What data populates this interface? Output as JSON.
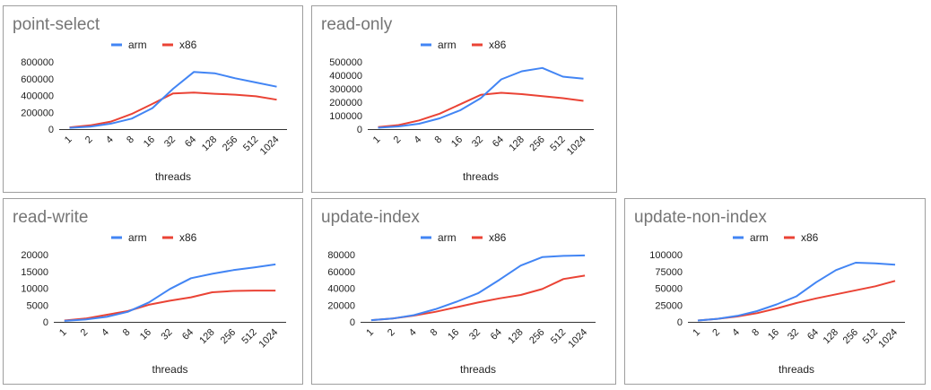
{
  "chart_data": [
    {
      "type": "line",
      "title": "point-select",
      "xlabel": "threads",
      "ylabel": "",
      "categories": [
        "1",
        "2",
        "4",
        "8",
        "16",
        "32",
        "64",
        "128",
        "256",
        "512",
        "1024"
      ],
      "yticks": [
        0,
        200000,
        400000,
        600000,
        800000
      ],
      "ylim": [
        0,
        800000
      ],
      "legend": "top",
      "series": [
        {
          "name": "arm",
          "color": "#4285f4",
          "values": [
            15000,
            30000,
            65000,
            125000,
            250000,
            480000,
            680000,
            665000,
            605000,
            555000,
            505000
          ]
        },
        {
          "name": "x86",
          "color": "#ea4335",
          "values": [
            20000,
            45000,
            90000,
            180000,
            300000,
            425000,
            435000,
            420000,
            410000,
            390000,
            350000
          ]
        }
      ]
    },
    {
      "type": "line",
      "title": "read-only",
      "xlabel": "threads",
      "ylabel": "",
      "categories": [
        "1",
        "2",
        "4",
        "8",
        "16",
        "32",
        "64",
        "128",
        "256",
        "512",
        "1024"
      ],
      "yticks": [
        0,
        100000,
        200000,
        300000,
        400000,
        500000
      ],
      "ylim": [
        0,
        500000
      ],
      "legend": "top",
      "series": [
        {
          "name": "arm",
          "color": "#4285f4",
          "values": [
            10000,
            20000,
            40000,
            80000,
            140000,
            230000,
            370000,
            430000,
            455000,
            390000,
            375000
          ]
        },
        {
          "name": "x86",
          "color": "#ea4335",
          "values": [
            15000,
            30000,
            65000,
            115000,
            185000,
            255000,
            270000,
            260000,
            245000,
            230000,
            210000
          ]
        }
      ]
    },
    {
      "type": "line",
      "title": "read-write",
      "xlabel": "threads",
      "ylabel": "",
      "categories": [
        "1",
        "2",
        "4",
        "8",
        "16",
        "32",
        "64",
        "128",
        "256",
        "512",
        "1024"
      ],
      "yticks": [
        0,
        5000,
        10000,
        15000,
        20000
      ],
      "ylim": [
        0,
        20000
      ],
      "legend": "top",
      "series": [
        {
          "name": "arm",
          "color": "#4285f4",
          "values": [
            300,
            700,
            1500,
            3000,
            5800,
            9800,
            13000,
            14300,
            15400,
            16200,
            17100
          ]
        },
        {
          "name": "x86",
          "color": "#ea4335",
          "values": [
            400,
            1000,
            2100,
            3200,
            5100,
            6300,
            7300,
            8800,
            9200,
            9300,
            9300
          ]
        }
      ]
    },
    {
      "type": "line",
      "title": "update-index",
      "xlabel": "threads",
      "ylabel": "",
      "categories": [
        "1",
        "2",
        "4",
        "8",
        "16",
        "32",
        "64",
        "128",
        "256",
        "512",
        "1024"
      ],
      "yticks": [
        0,
        20000,
        40000,
        60000,
        80000
      ],
      "ylim": [
        0,
        80000
      ],
      "legend": "top",
      "series": [
        {
          "name": "arm",
          "color": "#4285f4",
          "values": [
            2000,
            4000,
            8000,
            15000,
            24000,
            34000,
            50000,
            67000,
            77000,
            78500,
            79000
          ]
        },
        {
          "name": "x86",
          "color": "#ea4335",
          "values": [
            2000,
            4000,
            7500,
            12000,
            17500,
            23000,
            28000,
            32000,
            39000,
            51000,
            55000
          ]
        }
      ]
    },
    {
      "type": "line",
      "title": "update-non-index",
      "xlabel": "threads",
      "ylabel": "",
      "categories": [
        "1",
        "2",
        "4",
        "8",
        "16",
        "32",
        "64",
        "128",
        "256",
        "512",
        "1024"
      ],
      "yticks": [
        0,
        25000,
        50000,
        75000,
        100000
      ],
      "ylim": [
        0,
        100000
      ],
      "legend": "top",
      "series": [
        {
          "name": "arm",
          "color": "#4285f4",
          "values": [
            2000,
            4500,
            9000,
            16000,
            26000,
            38000,
            59000,
            77000,
            88000,
            87000,
            85000
          ]
        },
        {
          "name": "x86",
          "color": "#ea4335",
          "values": [
            2000,
            4500,
            8000,
            13000,
            20000,
            28000,
            35000,
            41000,
            47000,
            53000,
            61000
          ]
        }
      ]
    }
  ]
}
